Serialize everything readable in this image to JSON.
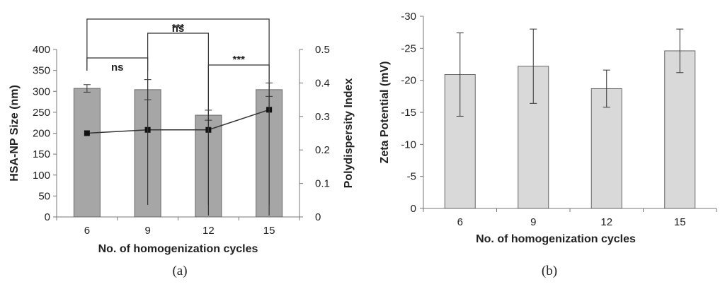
{
  "chart_data": [
    {
      "panel_label": "(a)",
      "type": "bar",
      "categories": [
        "6",
        "9",
        "12",
        "15"
      ],
      "xlabel": "No. of homogenization cycles",
      "ylabel": "HSA-NP Size (nm)",
      "y2label": "Polydispersity Index",
      "ylim": [
        0,
        400
      ],
      "y2lim": [
        0,
        0.5
      ],
      "y_ticks": [
        "0",
        "50",
        "100",
        "150",
        "200",
        "250",
        "300",
        "350",
        "400"
      ],
      "y2_ticks": [
        "0",
        "0.1",
        "0.2",
        "0.3",
        "0.4",
        "0.5"
      ],
      "bar_color": "#a6a6a6",
      "series": [
        {
          "values": [
            307,
            304,
            243,
            304
          ],
          "errors": [
            9,
            24,
            12,
            16
          ]
        },
        {
          "type": "line",
          "axis": "right",
          "values": [
            0.25,
            0.26,
            0.26,
            0.32
          ]
        }
      ],
      "significance": [
        {
          "from": "6",
          "to": "9",
          "label": "ns"
        },
        {
          "from": "12",
          "to": "15",
          "label": "***"
        },
        {
          "from": "9",
          "to": "12",
          "label": "***"
        },
        {
          "from": "6",
          "to": "15",
          "label": "ns"
        }
      ]
    },
    {
      "panel_label": "(b)",
      "type": "bar",
      "categories": [
        "6",
        "9",
        "12",
        "15"
      ],
      "xlabel": "No. of homogenization cycles",
      "ylabel": "Zeta Potential (mV)",
      "ylim": [
        0,
        -30
      ],
      "y_ticks": [
        "0",
        "-5",
        "-10",
        "-15",
        "-20",
        "-25",
        "-30"
      ],
      "bar_color": "#d9d9d9",
      "series": [
        {
          "values": [
            -20.9,
            -22.2,
            -18.7,
            -24.6
          ],
          "errors": [
            6.5,
            5.8,
            2.9,
            3.4
          ]
        }
      ]
    }
  ]
}
